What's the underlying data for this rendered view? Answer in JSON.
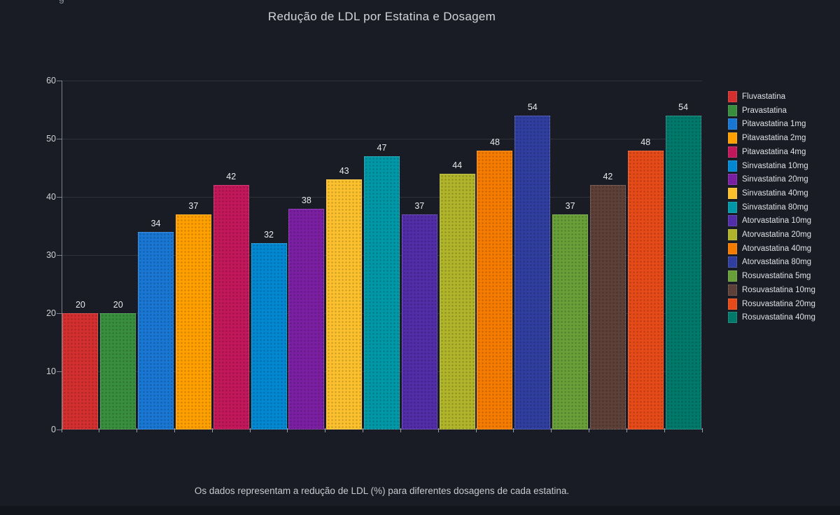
{
  "page": {
    "background": "#191c24",
    "bottom_bar_color": "#12151b",
    "edge_fragment": "g"
  },
  "theme": {
    "grid_color": "rgba(255,255,255,0.10)",
    "axis_color": "#7a818c",
    "tick_mark_color": "#9aa0a8",
    "tick_label_color": "#ced1d6",
    "title_color": "#d2d5d9",
    "value_label_color": "#e7e9ec",
    "legend_text_color": "#dee1e5",
    "footnote_color": "#c7cacf",
    "fragment_color": "#8b919b"
  },
  "chart_data": {
    "type": "bar",
    "title": "Redução de LDL por Estatina e Dosagem",
    "footnote": "Os dados representam a redução de LDL (%) para diferentes dosagens de cada estatina.",
    "xlabel": "",
    "ylabel": "",
    "ylim": [
      0,
      60
    ],
    "yticks": [
      0,
      10,
      20,
      30,
      40,
      50,
      60
    ],
    "grid": true,
    "legend_position": "right",
    "value_labels_shown": true,
    "categories": [
      "Fluvastatina",
      "Pravastatina",
      "Pitavastatina 1mg",
      "Pitavastatina 2mg",
      "Pitavastatina 4mg",
      "Sinvastatina 10mg",
      "Sinvastatina 20mg",
      "Sinvastatina 40mg",
      "Sinvastatina 80mg",
      "Atorvastatina 10mg",
      "Atorvastatina 20mg",
      "Atorvastatina 40mg",
      "Atorvastatina 80mg",
      "Rosuvastatina 5mg",
      "Rosuvastatina 10mg",
      "Rosuvastatina 20mg",
      "Rosuvastatina 40mg"
    ],
    "values": [
      20,
      20,
      34,
      37,
      42,
      32,
      38,
      43,
      47,
      37,
      44,
      48,
      54,
      37,
      42,
      48,
      54
    ],
    "colors": [
      "#d32f2f",
      "#388e3c",
      "#1976d2",
      "#ffa000",
      "#c2185b",
      "#0288d1",
      "#7b1fa2",
      "#fbc02d",
      "#0097a7",
      "#512da8",
      "#afb42b",
      "#f57c00",
      "#303f9f",
      "#689f38",
      "#5d4037",
      "#e64a19",
      "#00796b"
    ]
  }
}
